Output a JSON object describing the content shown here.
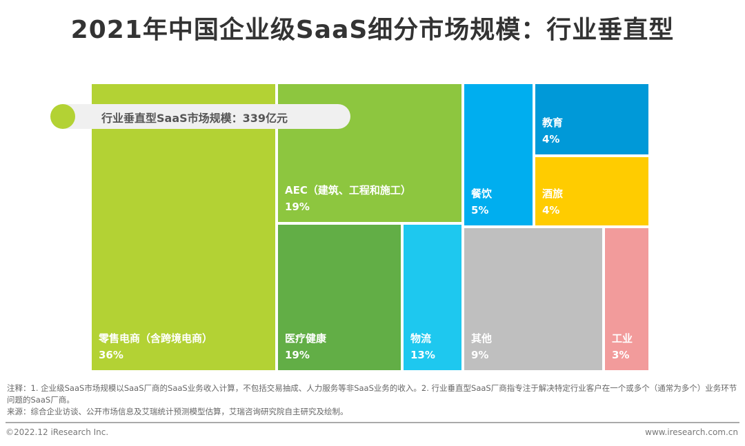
{
  "title": "2021年中国企业级SaaS细分市场规模：行业垂直型",
  "chart_data": {
    "type": "treemap",
    "title": "2021年中国企业级SaaS细分市场规模：行业垂直型",
    "total_label": "行业垂直型SaaS市场规模：339亿元",
    "unit": "%",
    "items": [
      {
        "name": "零售电商（含跨境电商）",
        "value": 36,
        "label": "36%",
        "color": "#b3d234"
      },
      {
        "name": "AEC（建筑、工程和施工）",
        "value": 19,
        "label": "19%",
        "color": "#8dc63f"
      },
      {
        "name": "医疗健康",
        "value": 19,
        "label": "19%",
        "color": "#62ae46"
      },
      {
        "name": "物流",
        "value": 13,
        "label": "13%",
        "color": "#1ec8ef"
      },
      {
        "name": "餐饮",
        "value": 5,
        "label": "5%",
        "color": "#00aeef"
      },
      {
        "name": "教育",
        "value": 4,
        "label": "4%",
        "color": "#0099d8"
      },
      {
        "name": "酒旅",
        "value": 4,
        "label": "4%",
        "color": "#ffcc00"
      },
      {
        "name": "其他",
        "value": 9,
        "label": "9%",
        "color": "#bfbfbf"
      },
      {
        "name": "工业",
        "value": 3,
        "label": "3%",
        "color": "#f29b9b"
      }
    ]
  },
  "notes": {
    "line1": "注释：1. 企业级SaaS市场规模以SaaS厂商的SaaS业务收入计算，不包括交易抽成、人力服务等非SaaS业务的收入。2. 行业垂直型SaaS厂商指专注于解决特定行业客户在一个或多个（通常为多个）业务环节问题的SaaS厂商。",
    "source": "来源：综合企业访谈、公开市场信息及艾瑞统计预测模型估算，艾瑞咨询研究院自主研究及绘制。"
  },
  "footer": {
    "copyright": "©2022.12 iResearch Inc.",
    "website": "www.iresearch.com.cn"
  }
}
